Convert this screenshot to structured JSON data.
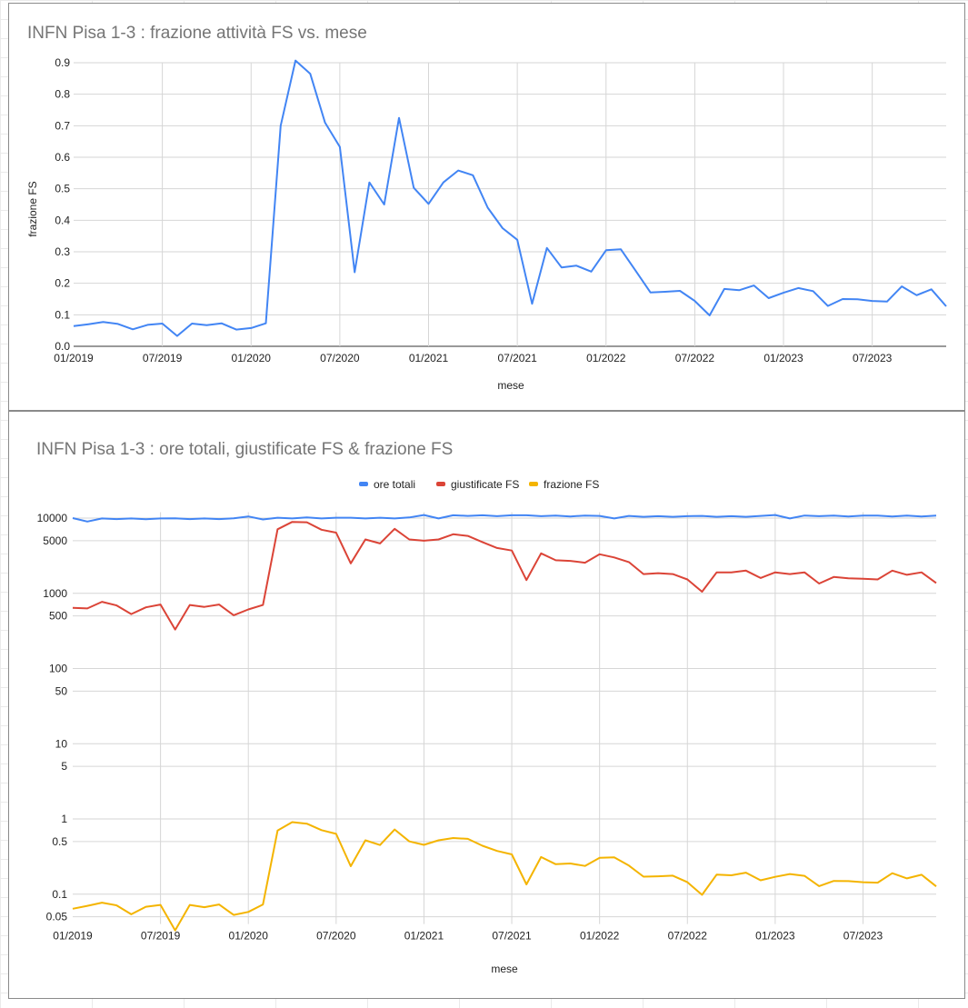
{
  "chart_data": [
    {
      "type": "line",
      "title": "INFN Pisa  1-3 : frazione attività FS vs. mese",
      "xlabel": "mese",
      "ylabel": "frazione FS",
      "ylim": [
        0,
        0.9
      ],
      "y_ticks": [
        "0.0",
        "0.1",
        "0.2",
        "0.3",
        "0.4",
        "0.5",
        "0.6",
        "0.7",
        "0.8",
        "0.9"
      ],
      "x_ticks": [
        "01/2019",
        "07/2019",
        "01/2020",
        "07/2020",
        "01/2021",
        "07/2021",
        "01/2022",
        "07/2022",
        "01/2023",
        "07/2023"
      ],
      "grid": true,
      "series": [
        {
          "color": "#4285f4",
          "values": [
            0.064,
            0.07,
            0.077,
            0.071,
            0.054,
            0.068,
            0.072,
            0.033,
            0.072,
            0.067,
            0.073,
            0.053,
            0.058,
            0.073,
            0.7,
            0.907,
            0.865,
            0.71,
            0.633,
            0.235,
            0.52,
            0.45,
            0.725,
            0.503,
            0.452,
            0.52,
            0.558,
            0.543,
            0.44,
            0.375,
            0.338,
            0.135,
            0.312,
            0.25,
            0.256,
            0.237,
            0.305,
            0.308,
            0.24,
            0.171,
            0.173,
            0.176,
            0.144,
            0.098,
            0.182,
            0.178,
            0.193,
            0.153,
            0.17,
            0.185,
            0.175,
            0.128,
            0.15,
            0.149,
            0.144,
            0.142,
            0.19,
            0.162,
            0.181,
            0.127
          ]
        }
      ]
    },
    {
      "type": "line",
      "title": "INFN Pisa 1-3 : ore totali, giustificate FS & frazione FS",
      "xlabel": "mese",
      "y_scale": "log",
      "ylim": [
        0.04,
        12000
      ],
      "y_ticks": [
        "10000",
        "5000",
        "1000",
        "500",
        "100",
        "50",
        "10",
        "5",
        "1",
        "0.5",
        "0.1",
        "0.05"
      ],
      "x_ticks": [
        "01/2019",
        "07/2019",
        "01/2020",
        "07/2020",
        "01/2021",
        "07/2021",
        "01/2022",
        "07/2022",
        "01/2023",
        "07/2023"
      ],
      "grid": true,
      "legend": "top",
      "series": [
        {
          "name": "ore totali",
          "color": "#4285f4",
          "values": [
            10000,
            9000,
            9900,
            9700,
            9900,
            9650,
            9900,
            9950,
            9700,
            9900,
            9700,
            9950,
            10500,
            9600,
            10100,
            9900,
            10200,
            9900,
            10100,
            10100,
            9900,
            10100,
            9900,
            10200,
            11000,
            9900,
            10900,
            10700,
            10900,
            10600,
            10900,
            10900,
            10600,
            10800,
            10500,
            10800,
            10700,
            9900,
            10700,
            10400,
            10600,
            10400,
            10600,
            10700,
            10400,
            10600,
            10400,
            10700,
            11000,
            9900,
            10800,
            10600,
            10800,
            10500,
            10800,
            10800,
            10500,
            10800,
            10500,
            10800
          ]
        },
        {
          "name": "giustificate FS",
          "color": "#db4437",
          "values": [
            640,
            630,
            770,
            690,
            530,
            650,
            710,
            330,
            700,
            660,
            710,
            510,
            610,
            700,
            7100,
            8900,
            8800,
            7000,
            6400,
            2500,
            5200,
            4600,
            7200,
            5200,
            5000,
            5200,
            6100,
            5800,
            4800,
            4000,
            3700,
            1500,
            3400,
            2750,
            2700,
            2550,
            3300,
            3000,
            2600,
            1800,
            1850,
            1800,
            1530,
            1050,
            1900,
            1900,
            2000,
            1600,
            1900,
            1800,
            1900,
            1350,
            1650,
            1580,
            1560,
            1530,
            2000,
            1760,
            1900,
            1370
          ]
        },
        {
          "name": "frazione FS",
          "color": "#f4b400",
          "values": [
            0.064,
            0.07,
            0.077,
            0.071,
            0.054,
            0.068,
            0.072,
            0.033,
            0.072,
            0.067,
            0.073,
            0.053,
            0.058,
            0.073,
            0.7,
            0.907,
            0.865,
            0.71,
            0.633,
            0.235,
            0.52,
            0.45,
            0.725,
            0.503,
            0.452,
            0.52,
            0.558,
            0.543,
            0.44,
            0.375,
            0.338,
            0.135,
            0.312,
            0.25,
            0.256,
            0.237,
            0.305,
            0.308,
            0.24,
            0.171,
            0.173,
            0.176,
            0.144,
            0.098,
            0.182,
            0.178,
            0.193,
            0.153,
            0.17,
            0.185,
            0.175,
            0.128,
            0.15,
            0.149,
            0.144,
            0.142,
            0.19,
            0.162,
            0.181,
            0.127
          ]
        }
      ]
    }
  ]
}
